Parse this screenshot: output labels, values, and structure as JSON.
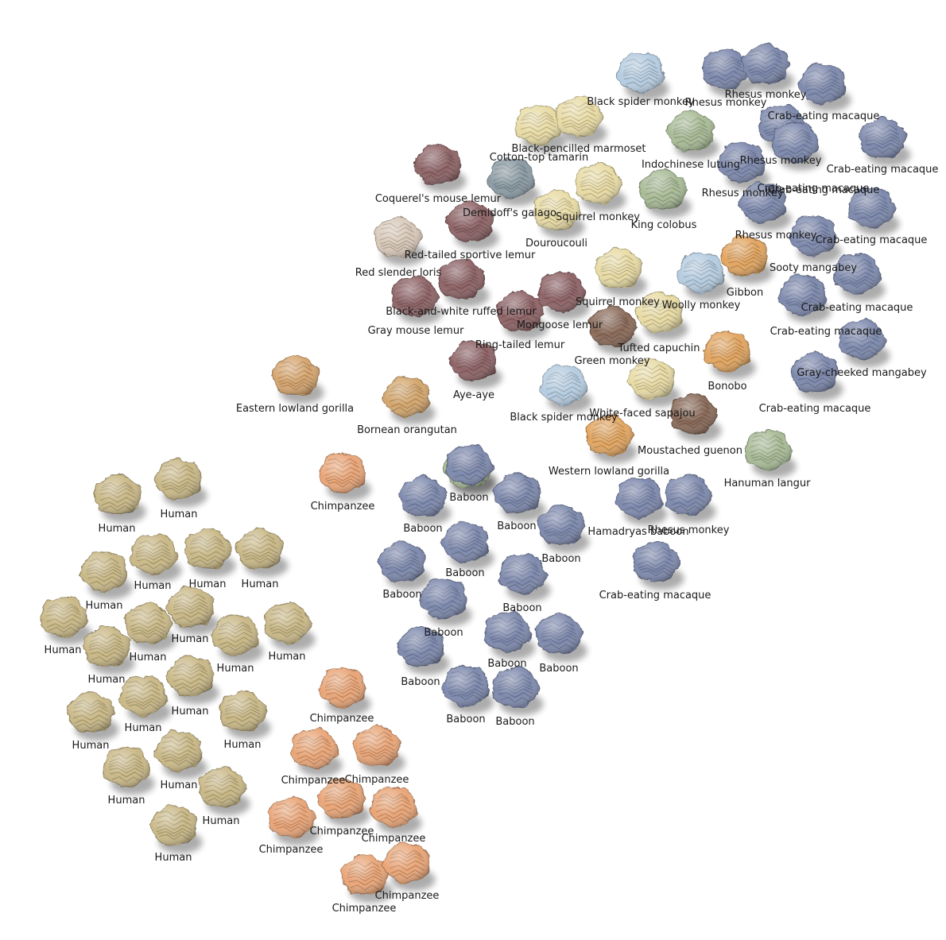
{
  "groups": {
    "human": "#c9b886",
    "chimp": "#e9a577",
    "baboon": "#7d89ad",
    "gorilla": "#d6a56e",
    "orangutan": "#d3a66c",
    "lemur": "#8e6466",
    "loris": "#d8c8b8",
    "galago": "#8a9aa3",
    "newworld": "#e8dba4",
    "spider": "#b5cce0",
    "colobine": "#a8bb96",
    "macaque": "#7d89ad",
    "capuchin": "#8a6a58",
    "ape": "#e2a561"
  },
  "brains": [
    {
      "label": "Black spider monkey",
      "group": "spider"
    },
    {
      "label": "Rhesus monkey",
      "group": "macaque"
    },
    {
      "label": "Rhesus monkey",
      "group": "macaque"
    },
    {
      "label": "Crab-eating macaque",
      "group": "macaque"
    },
    {
      "label": "Black-pencilled marmoset",
      "group": "newworld"
    },
    {
      "label": "Cotton-top tamarin",
      "group": "newworld"
    },
    {
      "label": "Indochinese lutung",
      "group": "colobine"
    },
    {
      "label": "Rhesus monkey",
      "group": "macaque"
    },
    {
      "label": "Crab-eating macaque",
      "group": "macaque"
    },
    {
      "label": "Crab-eating macaque",
      "group": "macaque"
    },
    {
      "label": "Coquerel's mouse lemur",
      "group": "lemur"
    },
    {
      "label": "Demidoff's galago",
      "group": "galago"
    },
    {
      "label": "Squirrel monkey",
      "group": "newworld"
    },
    {
      "label": "King colobus",
      "group": "colobine"
    },
    {
      "label": "Rhesus monkey",
      "group": "macaque"
    },
    {
      "label": "Crab-eating macaque",
      "group": "macaque"
    },
    {
      "label": "Douroucouli",
      "group": "newworld"
    },
    {
      "label": "Red-tailed sportive lemur",
      "group": "lemur"
    },
    {
      "label": "Rhesus monkey",
      "group": "macaque"
    },
    {
      "label": "Crab-eating macaque",
      "group": "macaque"
    },
    {
      "label": "Red slender loris",
      "group": "loris"
    },
    {
      "label": "Sooty mangabey",
      "group": "ape"
    },
    {
      "label": "Gibbon",
      "group": "spider"
    },
    {
      "label": "Black-and-white ruffed lemur",
      "group": "lemur"
    },
    {
      "label": "Squirrel monkey",
      "group": "newworld"
    },
    {
      "label": "Woolly monkey",
      "group": "newworld"
    },
    {
      "label": "Crab-eating macaque",
      "group": "macaque"
    },
    {
      "label": "Gray mouse lemur",
      "group": "lemur"
    },
    {
      "label": "Mongoose lemur",
      "group": "lemur"
    },
    {
      "label": "Crab-eating macaque",
      "group": "macaque"
    },
    {
      "label": "Ring-tailed lemur",
      "group": "lemur"
    },
    {
      "label": "Tufted capuchin",
      "group": "capuchin"
    },
    {
      "label": "Green monkey",
      "group": "newworld"
    },
    {
      "label": "Bonobo",
      "group": "ape"
    },
    {
      "label": "Gray-cheeked mangabey",
      "group": "macaque"
    },
    {
      "label": "Eastern lowland gorilla",
      "group": "gorilla"
    },
    {
      "label": "Aye-aye",
      "group": "lemur"
    },
    {
      "label": "Black spider monkey",
      "group": "spider"
    },
    {
      "label": "White-faced sapajou",
      "group": "capuchin"
    },
    {
      "label": "Crab-eating macaque",
      "group": "macaque"
    },
    {
      "label": "Bornean orangutan",
      "group": "orangutan"
    },
    {
      "label": "Moustached guenon",
      "group": "colobine"
    },
    {
      "label": "Western lowland gorilla",
      "group": "ape"
    },
    {
      "label": "Hanuman langur",
      "group": "colobine"
    },
    {
      "label": "Chimpanzee",
      "group": "chimp"
    },
    {
      "label": "Baboon",
      "group": "baboon"
    },
    {
      "label": "Baboon",
      "group": "baboon"
    },
    {
      "label": "Baboon",
      "group": "baboon"
    },
    {
      "label": "Hamadryas baboon",
      "group": "baboon"
    },
    {
      "label": "Rhesus monkey",
      "group": "macaque"
    },
    {
      "label": "Baboon",
      "group": "baboon"
    },
    {
      "label": "Baboon",
      "group": "baboon"
    },
    {
      "label": "Baboon",
      "group": "baboon"
    },
    {
      "label": "Crab-eating macaque",
      "group": "macaque"
    },
    {
      "label": "Baboon",
      "group": "baboon"
    },
    {
      "label": "Baboon",
      "group": "baboon"
    },
    {
      "label": "Baboon",
      "group": "baboon"
    },
    {
      "label": "Baboon",
      "group": "baboon"
    },
    {
      "label": "Baboon",
      "group": "baboon"
    },
    {
      "label": "Baboon",
      "group": "baboon"
    },
    {
      "label": "Baboon",
      "group": "baboon"
    },
    {
      "label": "Human",
      "group": "human"
    },
    {
      "label": "Human",
      "group": "human"
    },
    {
      "label": "Human",
      "group": "human"
    },
    {
      "label": "Human",
      "group": "human"
    },
    {
      "label": "Human",
      "group": "human"
    },
    {
      "label": "Human",
      "group": "human"
    },
    {
      "label": "Human",
      "group": "human"
    },
    {
      "label": "Human",
      "group": "human"
    },
    {
      "label": "Human",
      "group": "human"
    },
    {
      "label": "Human",
      "group": "human"
    },
    {
      "label": "Human",
      "group": "human"
    },
    {
      "label": "Human",
      "group": "human"
    },
    {
      "label": "Human",
      "group": "human"
    },
    {
      "label": "Human",
      "group": "human"
    },
    {
      "label": "Human",
      "group": "human"
    },
    {
      "label": "Human",
      "group": "human"
    },
    {
      "label": "Human",
      "group": "human"
    },
    {
      "label": "Human",
      "group": "human"
    },
    {
      "label": "Human",
      "group": "human"
    },
    {
      "label": "Human",
      "group": "human"
    },
    {
      "label": "Chimpanzee",
      "group": "chimp"
    },
    {
      "label": "Chimpanzee",
      "group": "chimp"
    },
    {
      "label": "Chimpanzee",
      "group": "chimp"
    },
    {
      "label": "Chimpanzee",
      "group": "chimp"
    },
    {
      "label": "Chimpanzee",
      "group": "chimp"
    },
    {
      "label": "Chimpanzee",
      "group": "chimp"
    },
    {
      "label": "Chimpanzee",
      "group": "chimp"
    },
    {
      "label": "Chimpanzee",
      "group": "chimp"
    }
  ]
}
